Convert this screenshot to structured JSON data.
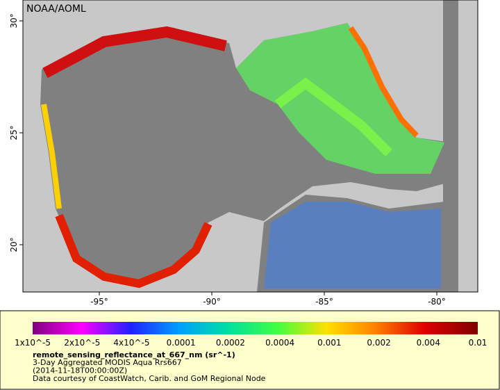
{
  "map": {
    "label": "NOAA/AOML",
    "lat_ticks": [
      {
        "value": 30,
        "label": "30°"
      },
      {
        "value": 25,
        "label": "25°"
      },
      {
        "value": 20,
        "label": "20°"
      }
    ],
    "lon_ticks": [
      {
        "value": -95,
        "label": "-95°"
      },
      {
        "value": -90,
        "label": "-90°"
      },
      {
        "value": -85,
        "label": "-85°"
      },
      {
        "value": -80,
        "label": "-80°"
      }
    ]
  },
  "colorbar": {
    "labels": [
      "1x10^-5",
      "2x10^-5",
      "4x10^-5",
      "0.0001",
      "0.0002",
      "0.0004",
      "0.001",
      "0.002",
      "0.004",
      "0.01"
    ],
    "title": "remote_sensing_reflectance_at_667_nm (sr^-1)",
    "lines": [
      "3-Day Aggregated MODIS Aqua Rrs667",
      "(2014-11-18T00:00:00Z)",
      "Data courtesy of CoastWatch, Carib. and GoM Regional Node"
    ]
  }
}
